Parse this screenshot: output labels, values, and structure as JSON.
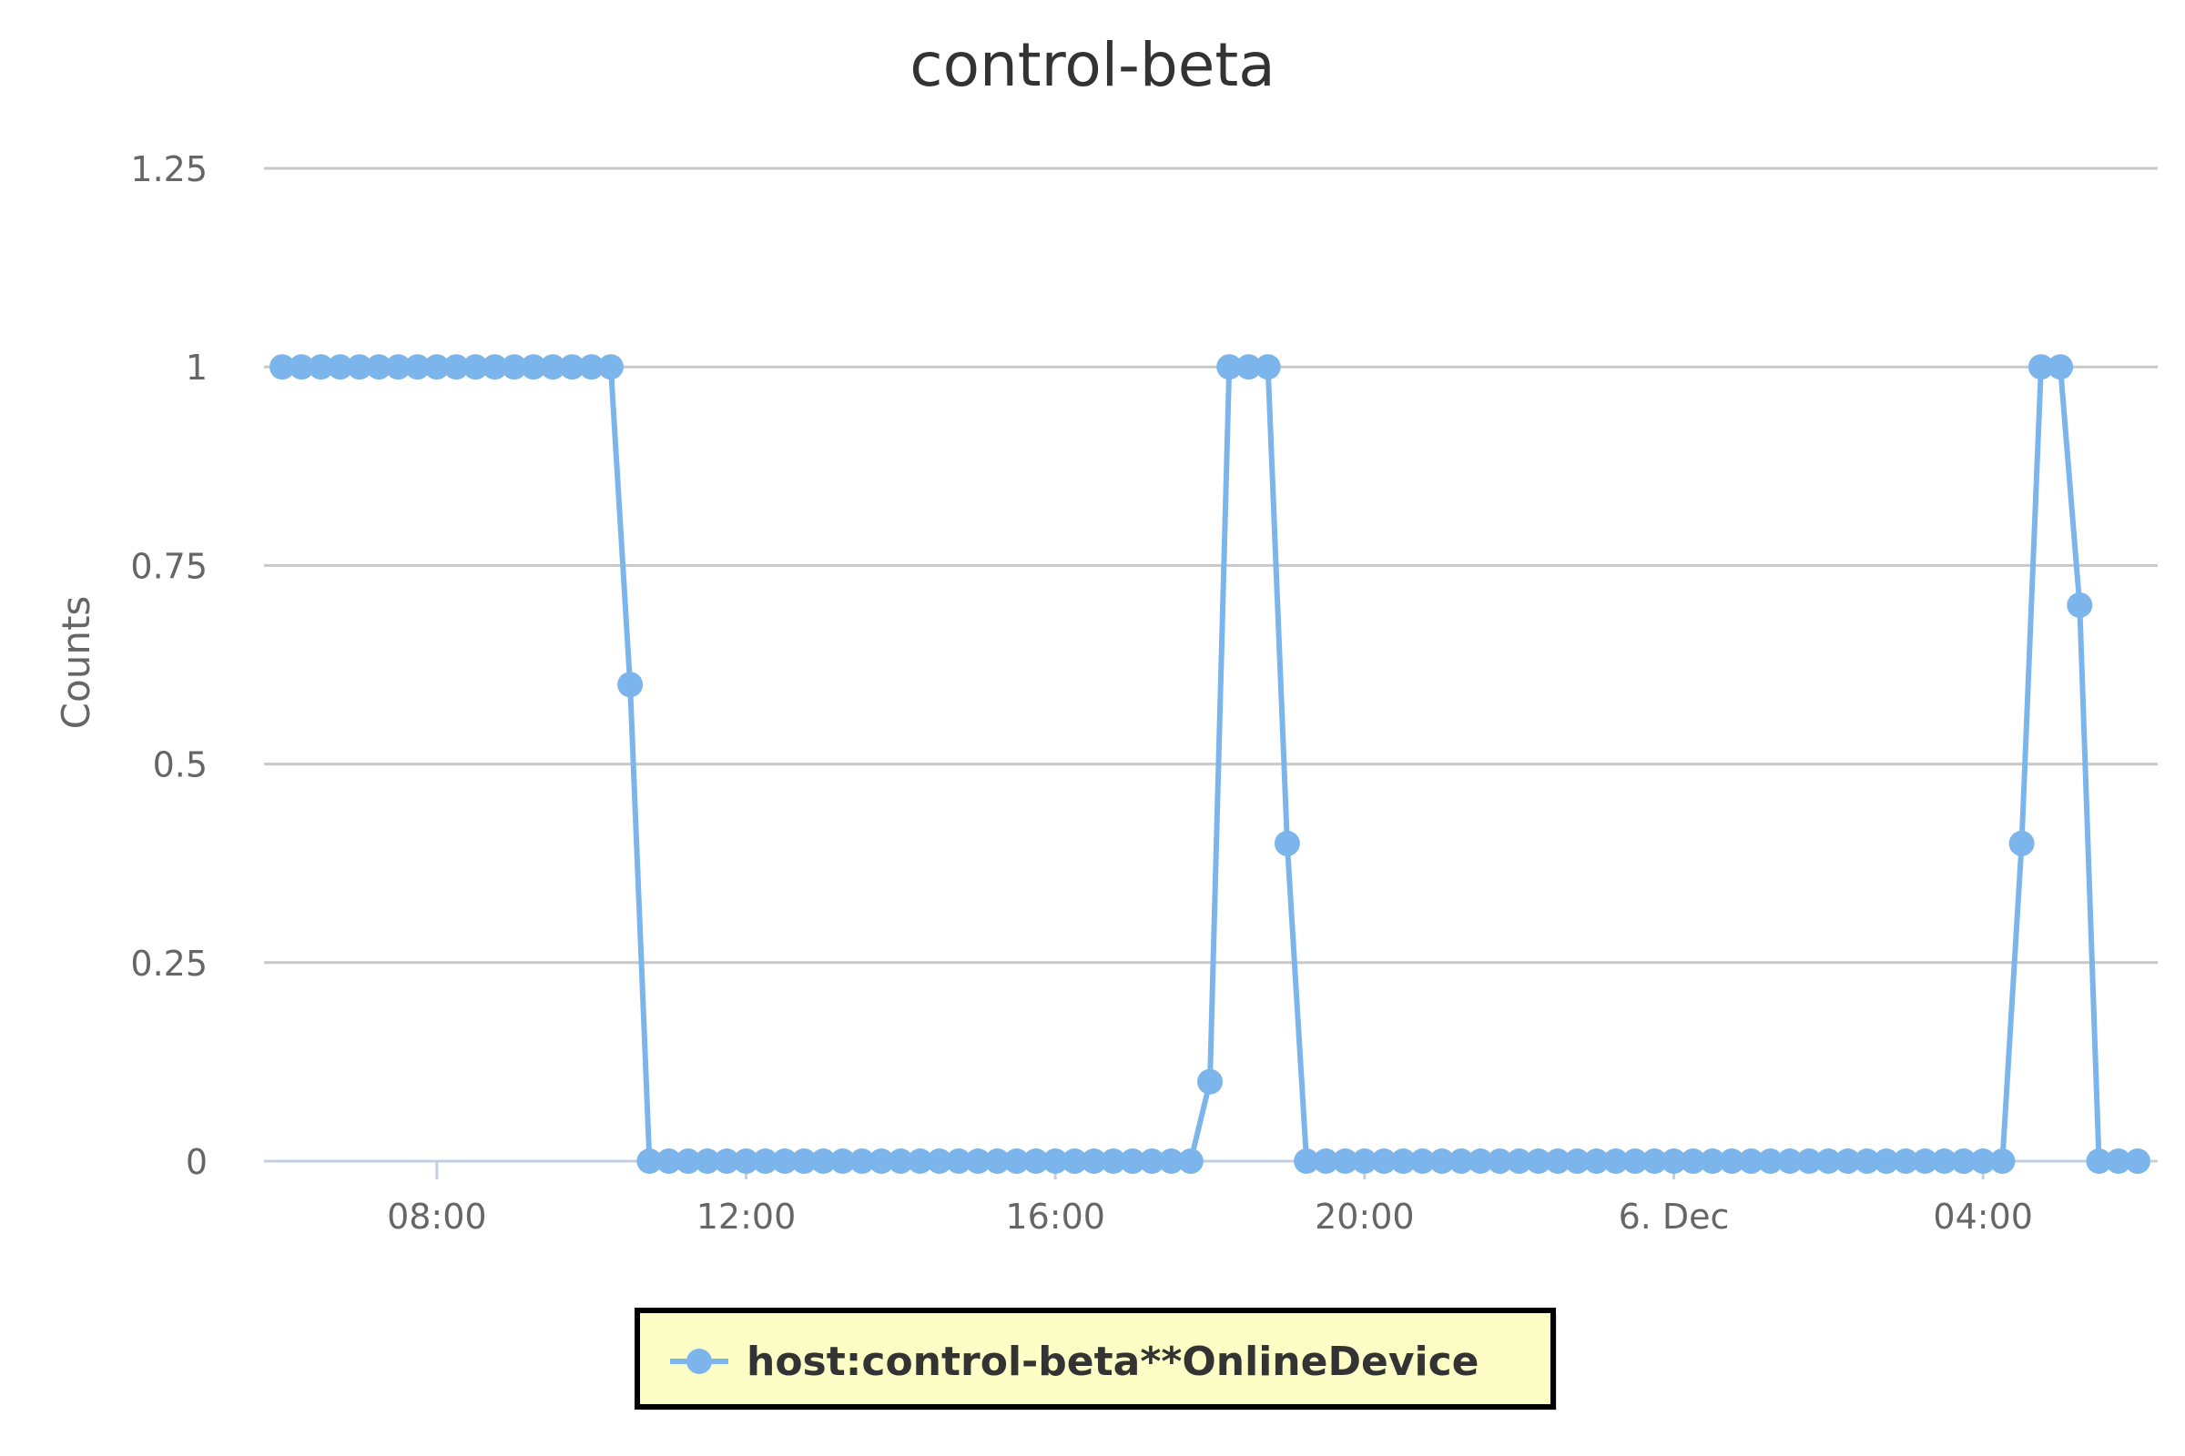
{
  "chart_data": {
    "type": "line",
    "title": "control-beta",
    "ylabel": "Counts",
    "xlabel": "",
    "ylim": [
      0,
      1.25
    ],
    "y_ticks": [
      "0",
      "0.25",
      "0.5",
      "0.75",
      "1",
      "1.25"
    ],
    "x_ticks": [
      "08:00",
      "12:00",
      "16:00",
      "20:00",
      "6. Dec",
      "04:00"
    ],
    "grid": true,
    "legend": "bottom-center",
    "series": [
      {
        "name": "host:control-beta**OnlineDevice",
        "color": "#7cb5ec",
        "points": [
          [
            "Dec 5 06:00",
            1
          ],
          [
            "Dec 5 06:15",
            1
          ],
          [
            "Dec 5 06:30",
            1
          ],
          [
            "Dec 5 06:45",
            1
          ],
          [
            "Dec 5 07:00",
            1
          ],
          [
            "Dec 5 07:15",
            1
          ],
          [
            "Dec 5 07:30",
            1
          ],
          [
            "Dec 5 07:45",
            1
          ],
          [
            "Dec 5 08:00",
            1
          ],
          [
            "Dec 5 08:15",
            1
          ],
          [
            "Dec 5 08:30",
            1
          ],
          [
            "Dec 5 08:45",
            1
          ],
          [
            "Dec 5 09:00",
            1
          ],
          [
            "Dec 5 09:15",
            1
          ],
          [
            "Dec 5 09:30",
            1
          ],
          [
            "Dec 5 09:45",
            1
          ],
          [
            "Dec 5 10:00",
            1
          ],
          [
            "Dec 5 10:15",
            1
          ],
          [
            "Dec 5 10:30",
            0.6
          ],
          [
            "Dec 5 10:45",
            0
          ],
          [
            "Dec 5 11:00",
            0
          ],
          [
            "Dec 5 11:15",
            0
          ],
          [
            "Dec 5 11:30",
            0
          ],
          [
            "Dec 5 11:45",
            0
          ],
          [
            "Dec 5 12:00",
            0
          ],
          [
            "Dec 5 12:15",
            0
          ],
          [
            "Dec 5 12:30",
            0
          ],
          [
            "Dec 5 12:45",
            0
          ],
          [
            "Dec 5 13:00",
            0
          ],
          [
            "Dec 5 13:15",
            0
          ],
          [
            "Dec 5 13:30",
            0
          ],
          [
            "Dec 5 13:45",
            0
          ],
          [
            "Dec 5 14:00",
            0
          ],
          [
            "Dec 5 14:15",
            0
          ],
          [
            "Dec 5 14:30",
            0
          ],
          [
            "Dec 5 14:45",
            0
          ],
          [
            "Dec 5 15:00",
            0
          ],
          [
            "Dec 5 15:15",
            0
          ],
          [
            "Dec 5 15:30",
            0
          ],
          [
            "Dec 5 15:45",
            0
          ],
          [
            "Dec 5 16:00",
            0
          ],
          [
            "Dec 5 16:15",
            0
          ],
          [
            "Dec 5 16:30",
            0
          ],
          [
            "Dec 5 16:45",
            0
          ],
          [
            "Dec 5 17:00",
            0
          ],
          [
            "Dec 5 17:15",
            0
          ],
          [
            "Dec 5 17:30",
            0
          ],
          [
            "Dec 5 17:45",
            0
          ],
          [
            "Dec 5 18:00",
            0.1
          ],
          [
            "Dec 5 18:15",
            1
          ],
          [
            "Dec 5 18:30",
            1
          ],
          [
            "Dec 5 18:45",
            1
          ],
          [
            "Dec 5 19:00",
            0.4
          ],
          [
            "Dec 5 19:15",
            0
          ],
          [
            "Dec 5 19:30",
            0
          ],
          [
            "Dec 5 19:45",
            0
          ],
          [
            "Dec 5 20:00",
            0
          ],
          [
            "Dec 5 20:15",
            0
          ],
          [
            "Dec 5 20:30",
            0
          ],
          [
            "Dec 5 20:45",
            0
          ],
          [
            "Dec 5 21:00",
            0
          ],
          [
            "Dec 5 21:15",
            0
          ],
          [
            "Dec 5 21:30",
            0
          ],
          [
            "Dec 5 21:45",
            0
          ],
          [
            "Dec 5 22:00",
            0
          ],
          [
            "Dec 5 22:15",
            0
          ],
          [
            "Dec 5 22:30",
            0
          ],
          [
            "Dec 5 22:45",
            0
          ],
          [
            "Dec 5 23:00",
            0
          ],
          [
            "Dec 5 23:15",
            0
          ],
          [
            "Dec 5 23:30",
            0
          ],
          [
            "Dec 5 23:45",
            0
          ],
          [
            "Dec 6 00:00",
            0
          ],
          [
            "Dec 6 00:15",
            0
          ],
          [
            "Dec 6 00:30",
            0
          ],
          [
            "Dec 6 00:45",
            0
          ],
          [
            "Dec 6 01:00",
            0
          ],
          [
            "Dec 6 01:15",
            0
          ],
          [
            "Dec 6 01:30",
            0
          ],
          [
            "Dec 6 01:45",
            0
          ],
          [
            "Dec 6 02:00",
            0
          ],
          [
            "Dec 6 02:15",
            0
          ],
          [
            "Dec 6 02:30",
            0
          ],
          [
            "Dec 6 02:45",
            0
          ],
          [
            "Dec 6 03:00",
            0
          ],
          [
            "Dec 6 03:15",
            0
          ],
          [
            "Dec 6 03:30",
            0
          ],
          [
            "Dec 6 03:45",
            0
          ],
          [
            "Dec 6 04:00",
            0
          ],
          [
            "Dec 6 04:15",
            0
          ],
          [
            "Dec 6 04:30",
            0.4
          ],
          [
            "Dec 6 04:45",
            1
          ],
          [
            "Dec 6 05:00",
            1
          ],
          [
            "Dec 6 05:15",
            0.7
          ],
          [
            "Dec 6 05:30",
            0
          ],
          [
            "Dec 6 05:45",
            0
          ],
          [
            "Dec 6 06:00",
            0
          ]
        ]
      }
    ]
  }
}
